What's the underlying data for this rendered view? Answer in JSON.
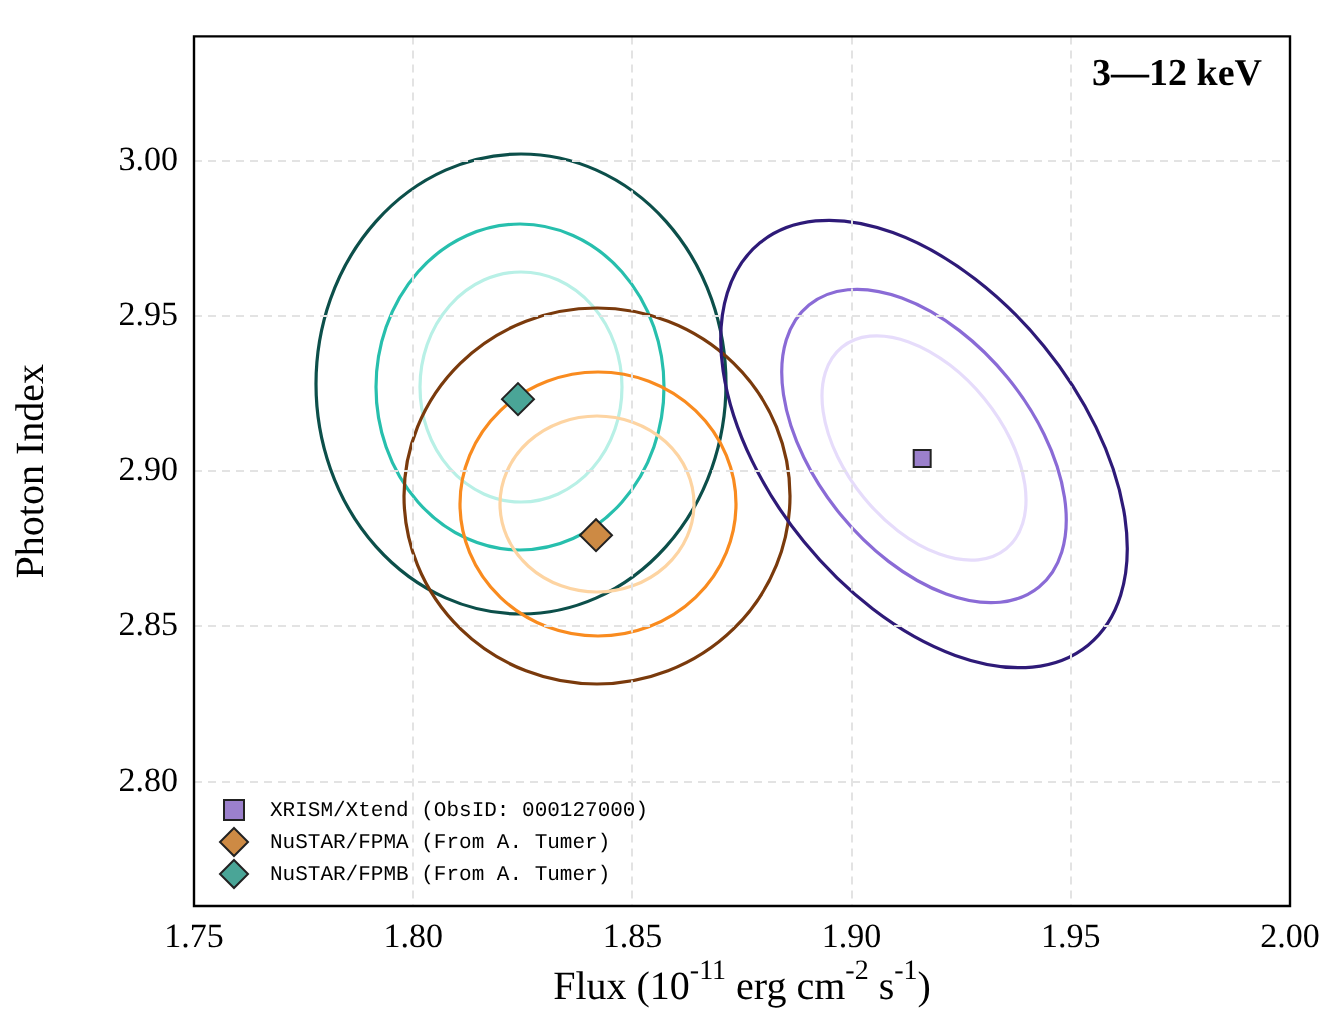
{
  "chart_data": {
    "type": "scatter",
    "title": "3—12 keV",
    "xlabel": "Flux (10$^{-11}$ erg cm$^{-2}$ s$^{-1}$)",
    "ylabel": "Photon Index",
    "xlim": [
      1.75,
      2.0
    ],
    "xticks": [
      1.75,
      {
        "value": 1.8,
        "label": "1.80"
      },
      1.85,
      {
        "value": 1.9,
        "label": "1.90"
      },
      1.95,
      {
        "value": 2.0,
        "label": "2.00"
      }
    ],
    "ylim": [
      2.76,
      3.04
    ],
    "yticks": [
      {
        "value": 2.8,
        "label": "2.80"
      },
      2.85,
      {
        "value": 2.9,
        "label": "2.90"
      },
      2.95,
      {
        "value": 3.0,
        "label": "3.00"
      }
    ],
    "grid": true,
    "legend": "bottom left",
    "series": [
      {
        "marker": "square",
        "name": "XRISM/Xtend (ObsID: 000127000)",
        "color": "#9b80cc",
        "x": [
          1.9161
        ],
        "values": [
          2.9041
        ]
      },
      {
        "marker": "diamond",
        "name": "NuSTAR/FPMA (From A. Tumer)",
        "color": "#cd8a44",
        "x": [
          1.8417
        ],
        "values": [
          2.8794
        ]
      },
      {
        "marker": "diamond",
        "name": "NuSTAR/FPMB (From A. Tumer)",
        "color": "#4aa597",
        "x": [
          1.8239
        ],
        "values": [
          2.9232
        ]
      }
    ]
  }
}
